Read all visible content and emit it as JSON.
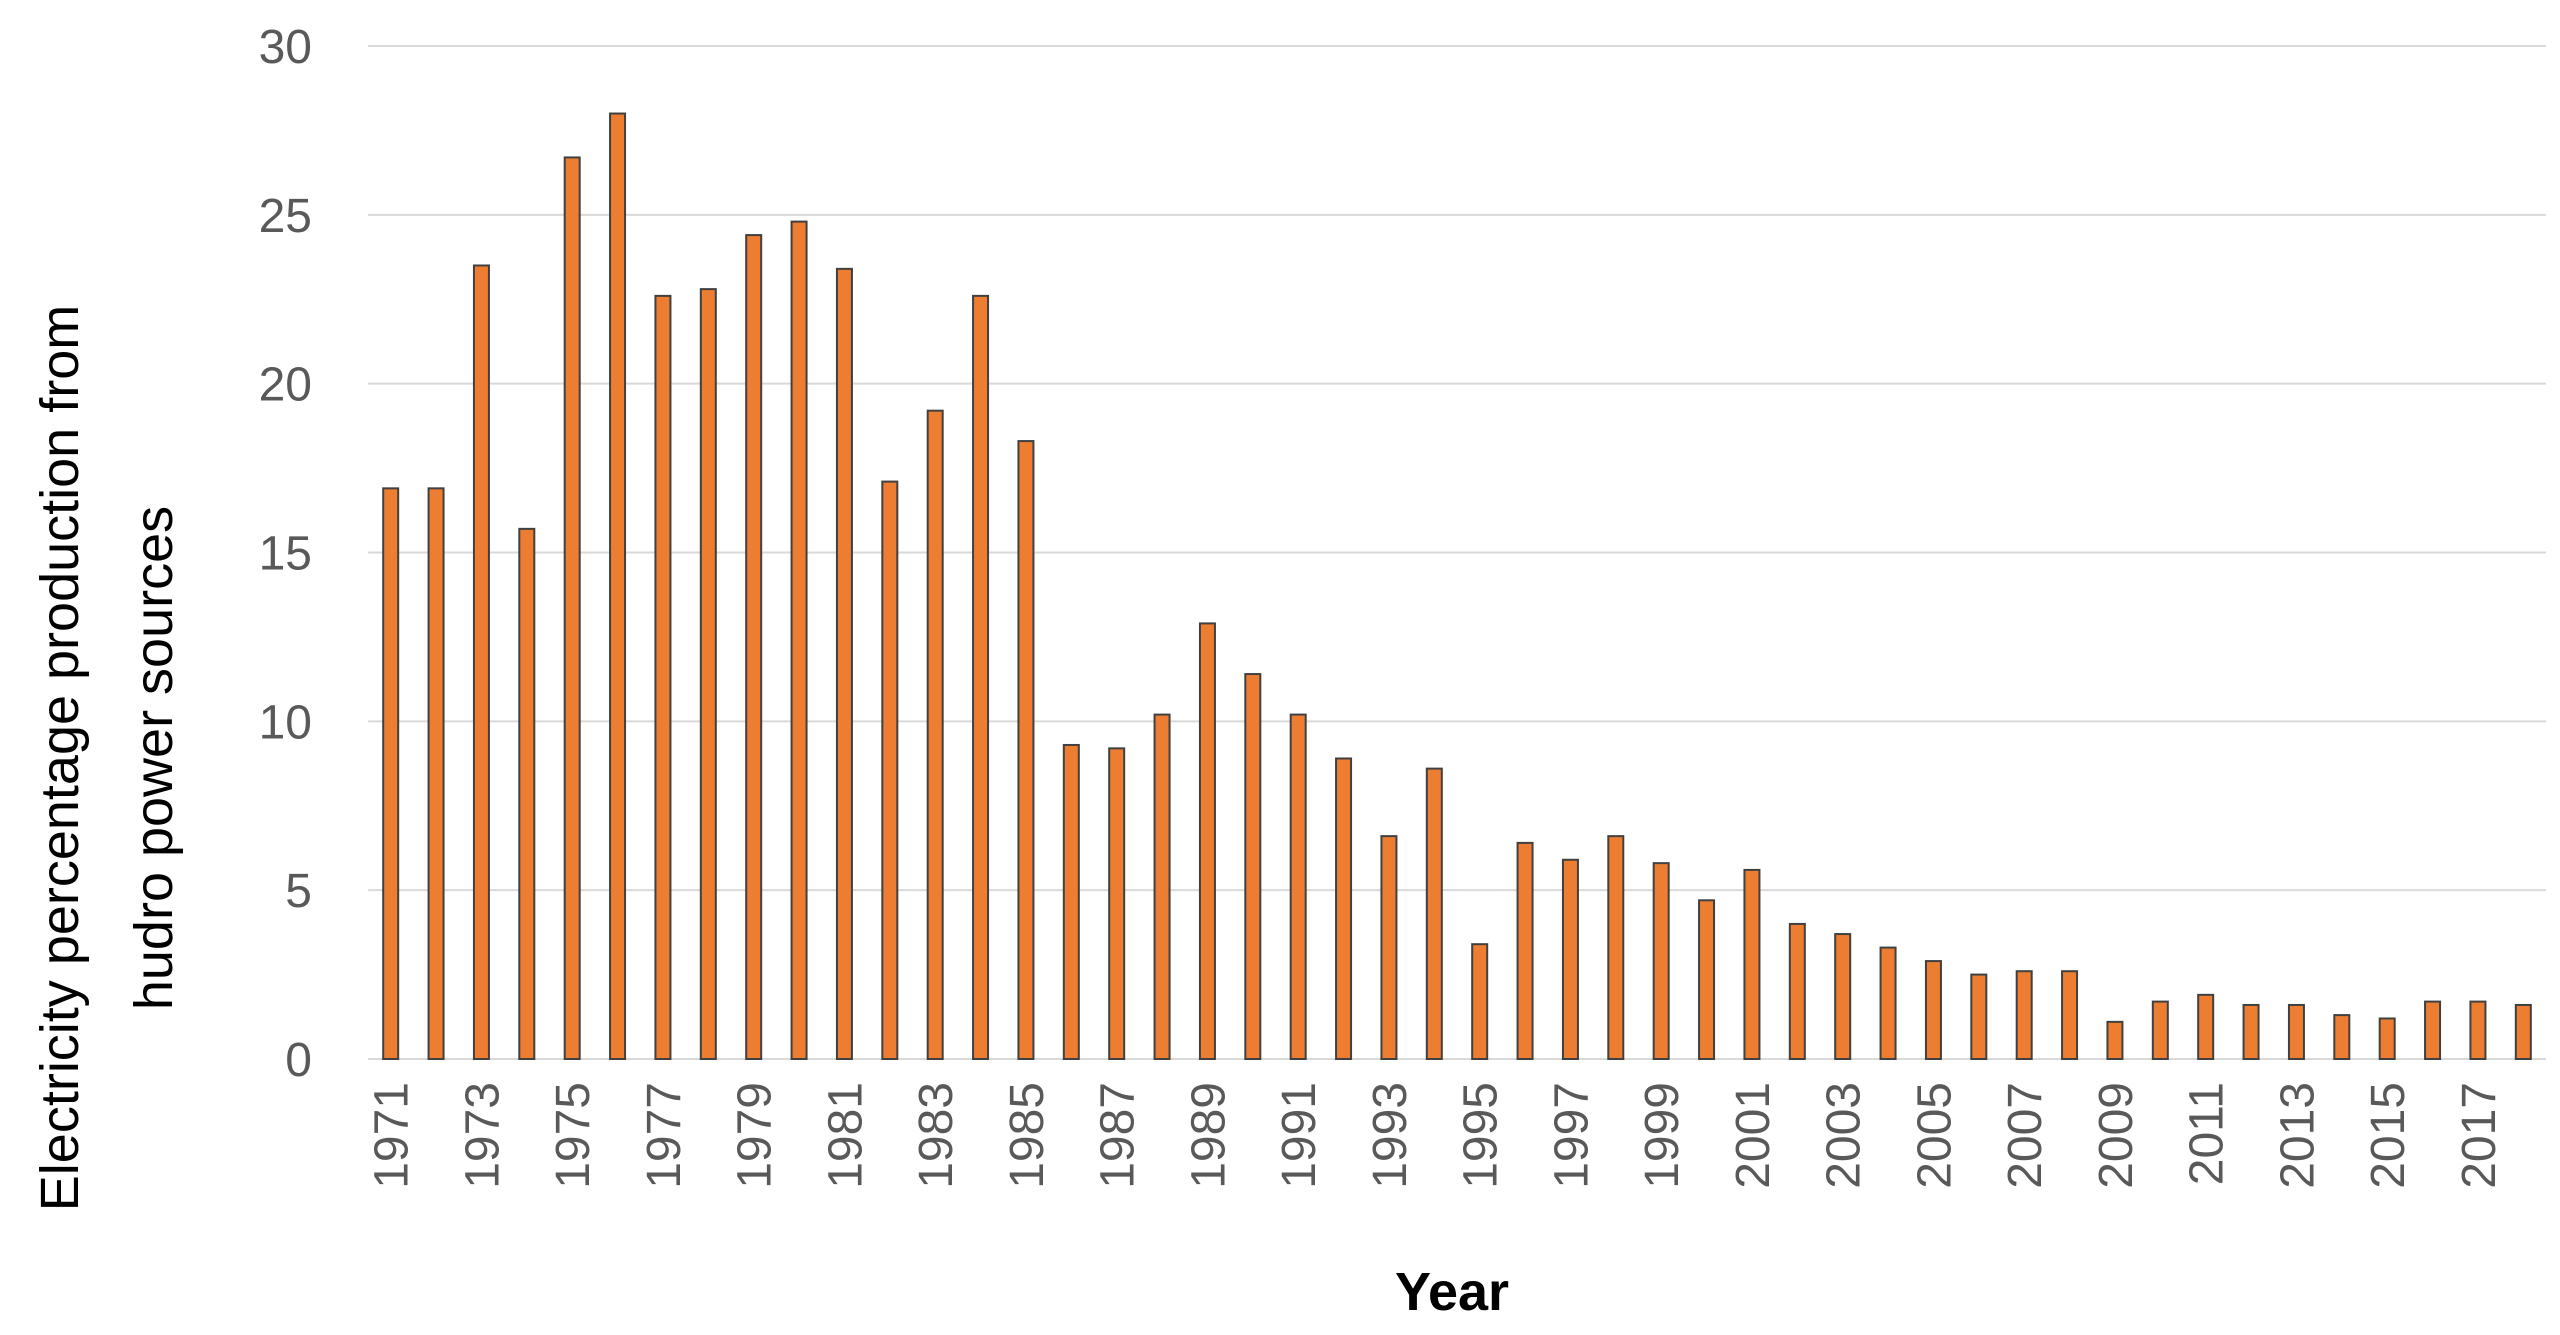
{
  "chart_data": {
    "type": "bar",
    "title": "",
    "xlabel": "Year",
    "ylabel_lines": [
      "Electricity percentage production from",
      "hudro power sources"
    ],
    "ylim": [
      0,
      30
    ],
    "yticks": [
      0,
      5,
      10,
      15,
      20,
      25,
      30
    ],
    "grid": true,
    "categories": [
      "1971",
      "1972",
      "1973",
      "1974",
      "1975",
      "1976",
      "1977",
      "1978",
      "1979",
      "1980",
      "1981",
      "1982",
      "1983",
      "1984",
      "1985",
      "1986",
      "1987",
      "1988",
      "1989",
      "1990",
      "1991",
      "1992",
      "1993",
      "1994",
      "1995",
      "1996",
      "1997",
      "1998",
      "1999",
      "2000",
      "2001",
      "2002",
      "2003",
      "2004",
      "2005",
      "2006",
      "2007",
      "2008",
      "2009",
      "2010",
      "2011",
      "2012",
      "2013",
      "2014",
      "2015",
      "2016",
      "2017",
      "2018"
    ],
    "xtick_labels": [
      "1971",
      "",
      "1973",
      "",
      "1975",
      "",
      "1977",
      "",
      "1979",
      "",
      "1981",
      "",
      "1983",
      "",
      "1985",
      "",
      "1987",
      "",
      "1989",
      "",
      "1991",
      "",
      "1993",
      "",
      "1995",
      "",
      "1997",
      "",
      "1999",
      "",
      "2001",
      "",
      "2003",
      "",
      "2005",
      "",
      "2007",
      "",
      "2009",
      "",
      "2011",
      "",
      "2013",
      "",
      "2015",
      "",
      "2017",
      ""
    ],
    "values": [
      16.9,
      16.9,
      23.5,
      15.7,
      26.7,
      28.0,
      22.6,
      22.8,
      24.4,
      24.8,
      23.4,
      17.1,
      19.2,
      22.6,
      18.3,
      9.3,
      9.2,
      10.2,
      12.9,
      11.4,
      10.2,
      8.9,
      6.6,
      8.6,
      3.4,
      6.4,
      5.9,
      6.6,
      5.8,
      4.7,
      5.6,
      4.0,
      3.7,
      3.3,
      2.9,
      2.5,
      2.6,
      2.6,
      1.1,
      1.7,
      1.9,
      1.6,
      1.6,
      1.3,
      1.2,
      1.7,
      1.7,
      1.6
    ],
    "colors": {
      "bar_fill": "#ED7D31",
      "bar_stroke": "#404040",
      "grid": "#D9D9D9",
      "tick_text": "#595959",
      "axis_title": "#000000"
    }
  }
}
